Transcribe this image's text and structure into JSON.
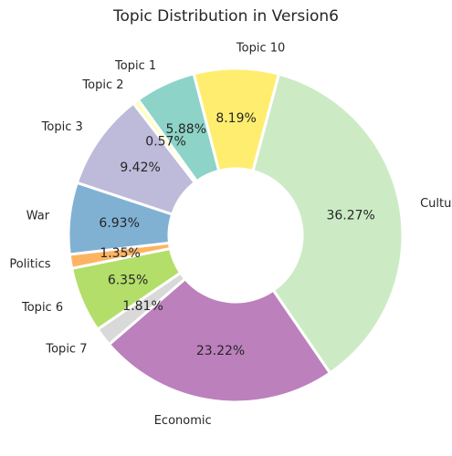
{
  "chart_data": {
    "type": "pie",
    "style": "donut",
    "title": "Topic Distribution in Version6",
    "slices": [
      {
        "label": "Culture",
        "value": 36.27,
        "pct_label": "36.27%",
        "color": "#ccebc5"
      },
      {
        "label": "Economic",
        "value": 23.22,
        "pct_label": "23.22%",
        "color": "#bc80bd"
      },
      {
        "label": "Topic 7",
        "value": 1.81,
        "pct_label": "1.81%",
        "color": "#d9d9d9"
      },
      {
        "label": "Topic 6",
        "value": 6.35,
        "pct_label": "6.35%",
        "color": "#b3de69"
      },
      {
        "label": "Politics",
        "value": 1.35,
        "pct_label": "1.35%",
        "color": "#fdb462"
      },
      {
        "label": "War",
        "value": 6.93,
        "pct_label": "6.93%",
        "color": "#80b1d3"
      },
      {
        "label": "Topic 3",
        "value": 9.42,
        "pct_label": "9.42%",
        "color": "#bebada"
      },
      {
        "label": "Topic 2",
        "value": 0.57,
        "pct_label": "0.57%",
        "color": "#ffffb3"
      },
      {
        "label": "Topic 1",
        "value": 5.88,
        "pct_label": "5.88%",
        "color": "#8dd3c7"
      },
      {
        "label": "Topic 10",
        "value": 8.19,
        "pct_label": "8.19%",
        "color": "#ffed6f"
      }
    ],
    "start_angle_deg": 75,
    "direction": "clockwise",
    "legend": "none"
  }
}
